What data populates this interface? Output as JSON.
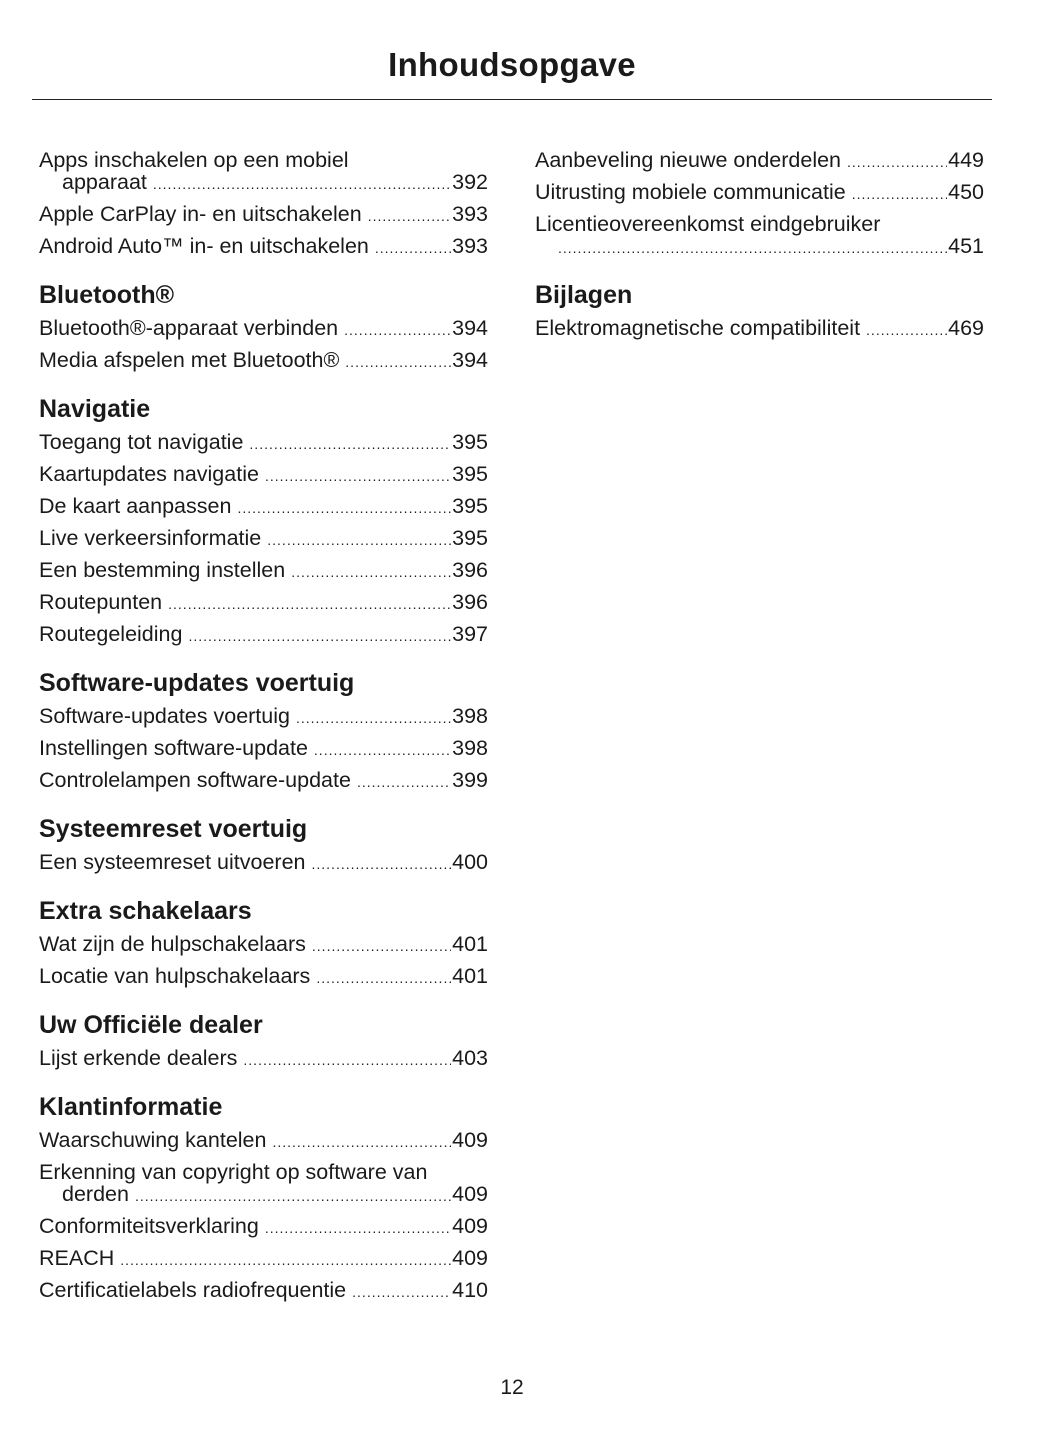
{
  "title": "Inhoudsopgave",
  "page_number": "12",
  "columns": [
    [
      {
        "heading": "",
        "entries": [
          {
            "title": "Apps inschakelen op een mobiel",
            "title_cont": "apparaat",
            "page": "392"
          },
          {
            "title": "Apple CarPlay in- en uitschakelen",
            "page": "393"
          },
          {
            "title": "Android Auto™ in- en uitschakelen",
            "page": "393"
          }
        ]
      },
      {
        "heading": "Bluetooth®",
        "entries": [
          {
            "title": "Bluetooth®-apparaat verbinden",
            "page": "394"
          },
          {
            "title": "Media afspelen met Bluetooth®",
            "page": "394"
          }
        ]
      },
      {
        "heading": "Navigatie",
        "entries": [
          {
            "title": "Toegang tot navigatie",
            "page": "395"
          },
          {
            "title": "Kaartupdates navigatie",
            "page": "395"
          },
          {
            "title": "De kaart aanpassen",
            "page": "395"
          },
          {
            "title": "Live verkeersinformatie",
            "page": "395"
          },
          {
            "title": "Een bestemming instellen",
            "page": "396"
          },
          {
            "title": "Routepunten",
            "page": "396"
          },
          {
            "title": "Routegeleiding",
            "page": "397"
          }
        ]
      },
      {
        "heading": "Software-updates voertuig",
        "entries": [
          {
            "title": "Software-updates voertuig",
            "page": "398"
          },
          {
            "title": "Instellingen software-update",
            "page": "398"
          },
          {
            "title": "Controlelampen software-update",
            "page": "399"
          }
        ]
      },
      {
        "heading": "Systeemreset voertuig",
        "entries": [
          {
            "title": "Een systeemreset uitvoeren",
            "page": "400"
          }
        ]
      },
      {
        "heading": "Extra schakelaars",
        "entries": [
          {
            "title": "Wat zijn de hulpschakelaars",
            "page": "401"
          },
          {
            "title": "Locatie van hulpschakelaars",
            "page": "401"
          }
        ]
      },
      {
        "heading": "Uw Officiële dealer",
        "entries": [
          {
            "title": "Lijst erkende dealers",
            "page": "403"
          }
        ]
      },
      {
        "heading": "Klantinformatie",
        "entries": [
          {
            "title": "Waarschuwing kantelen",
            "page": "409"
          },
          {
            "title": "Erkenning van copyright op software van",
            "title_cont": "derden",
            "page": "409"
          },
          {
            "title": "Conformiteitsverklaring",
            "page": "409"
          },
          {
            "title": "REACH",
            "page": "409"
          },
          {
            "title": "Certificatielabels radiofrequentie",
            "page": "410"
          }
        ]
      }
    ],
    [
      {
        "heading": "",
        "entries": [
          {
            "title": "Aanbeveling nieuwe onderdelen",
            "page": "449"
          },
          {
            "title": "Uitrusting mobiele communicatie",
            "page": "450"
          },
          {
            "title": "Licentieovereenkomst eindgebruiker",
            "title_cont": "",
            "page": "451"
          }
        ]
      },
      {
        "heading": "Bijlagen",
        "entries": [
          {
            "title": "Elektromagnetische compatibiliteit",
            "page": "469"
          }
        ]
      }
    ]
  ]
}
